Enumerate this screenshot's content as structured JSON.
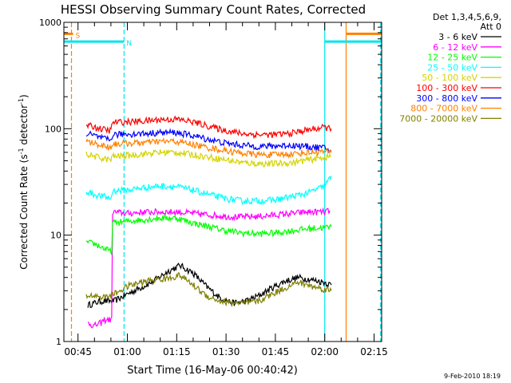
{
  "chart_data": {
    "type": "line",
    "title": "HESSI Observing Summary Count Rates, Corrected",
    "xlabel": "Start Time (16-May-06 00:40:42)",
    "ylabel_main": "Corrected Count Rate (s",
    "ylabel_exp1": "-1",
    "ylabel_mid": " detector",
    "ylabel_exp2": "-1",
    "ylabel_end": ")",
    "timestamp": "9-Feb-2010 18:19",
    "y_scale": "log",
    "ylim": [
      1,
      1000
    ],
    "xlim_minutes": [
      40.7,
      137.3
    ],
    "x_ticks": [
      {
        "minute": 45,
        "label": "00:45"
      },
      {
        "minute": 60,
        "label": "01:00"
      },
      {
        "minute": 75,
        "label": "01:15"
      },
      {
        "minute": 90,
        "label": "01:30"
      },
      {
        "minute": 105,
        "label": "01:45"
      },
      {
        "minute": 120,
        "label": "02:00"
      },
      {
        "minute": 135,
        "label": "02:15"
      }
    ],
    "y_ticks": [
      {
        "value": 1,
        "label": "1"
      },
      {
        "value": 10,
        "label": "10"
      },
      {
        "value": 100,
        "label": "100"
      },
      {
        "value": 1000,
        "label": "1000"
      }
    ],
    "legend": {
      "header1": "Det 1,3,4,5,6,9,",
      "header2": "Att 0",
      "placement": "right"
    },
    "flags": [
      {
        "label": "S",
        "color": "#ff8000",
        "start": 40.7,
        "end": 43.5,
        "restart": 126.5,
        "level": 780
      },
      {
        "label": "N",
        "color": "#00e5ee",
        "start": 40.7,
        "end": 59.0,
        "restart": 120.0,
        "level": 660
      }
    ],
    "markers": [
      {
        "minute": 43.0,
        "color": "#ff8000",
        "style": "dashed"
      },
      {
        "minute": 59.0,
        "color": "#00e5ee",
        "style": "dashed"
      },
      {
        "minute": 120.0,
        "color": "#00e5ee",
        "style": "solid"
      },
      {
        "minute": 126.5,
        "color": "#ff8000",
        "style": "solid"
      },
      {
        "minute": 137.0,
        "color": "#00e5ee",
        "style": "dashed"
      }
    ],
    "series": [
      {
        "name": "3 - 6 keV",
        "color": "#000000",
        "points": [
          [
            48,
            2.2
          ],
          [
            52,
            2.4
          ],
          [
            56,
            2.4
          ],
          [
            60,
            2.8
          ],
          [
            64,
            3.2
          ],
          [
            68,
            3.7
          ],
          [
            72,
            4.5
          ],
          [
            76,
            5.2
          ],
          [
            80,
            4.4
          ],
          [
            84,
            3.3
          ],
          [
            88,
            2.6
          ],
          [
            92,
            2.3
          ],
          [
            96,
            2.4
          ],
          [
            100,
            2.7
          ],
          [
            104,
            3.2
          ],
          [
            108,
            3.7
          ],
          [
            112,
            4.0
          ],
          [
            116,
            3.8
          ],
          [
            120,
            3.6
          ],
          [
            122,
            3.4
          ]
        ]
      },
      {
        "name": "6 - 12 keV",
        "color": "#ff00ff",
        "points": [
          [
            48,
            1.5
          ],
          [
            50,
            1.4
          ],
          [
            52,
            1.5
          ],
          [
            53,
            1.6
          ],
          [
            55.5,
            16.5
          ],
          [
            60,
            16
          ],
          [
            65,
            16.5
          ],
          [
            70,
            16.5
          ],
          [
            75,
            16.5
          ],
          [
            80,
            16
          ],
          [
            85,
            15.5
          ],
          [
            90,
            15
          ],
          [
            95,
            14.8
          ],
          [
            100,
            15
          ],
          [
            105,
            15.5
          ],
          [
            110,
            16
          ],
          [
            115,
            16.5
          ],
          [
            120,
            16.5
          ],
          [
            121.5,
            17
          ]
        ]
      },
      {
        "name": "12 - 25 keV",
        "color": "#00ff00",
        "points": [
          [
            47.5,
            8.5
          ],
          [
            50,
            8.3
          ],
          [
            53,
            7.5
          ],
          [
            55,
            7.0
          ],
          [
            55.5,
            13
          ],
          [
            60,
            13.5
          ],
          [
            65,
            14
          ],
          [
            70,
            14.5
          ],
          [
            75,
            14.5
          ],
          [
            80,
            13
          ],
          [
            85,
            12
          ],
          [
            90,
            11
          ],
          [
            95,
            10.5
          ],
          [
            100,
            10.3
          ],
          [
            105,
            10.5
          ],
          [
            110,
            11
          ],
          [
            115,
            11.5
          ],
          [
            120,
            11.8
          ],
          [
            122,
            12
          ]
        ]
      },
      {
        "name": "25 - 50 keV",
        "color": "#00ffff",
        "points": [
          [
            47.5,
            26
          ],
          [
            50,
            24
          ],
          [
            53,
            23
          ],
          [
            55,
            22
          ],
          [
            55.5,
            26
          ],
          [
            60,
            26.5
          ],
          [
            65,
            28
          ],
          [
            70,
            29
          ],
          [
            75,
            28.5
          ],
          [
            80,
            26.5
          ],
          [
            85,
            24
          ],
          [
            90,
            22
          ],
          [
            95,
            21
          ],
          [
            100,
            21
          ],
          [
            105,
            21.5
          ],
          [
            110,
            23
          ],
          [
            115,
            25
          ],
          [
            120,
            29
          ],
          [
            122,
            36
          ]
        ]
      },
      {
        "name": "50 - 100 keV",
        "color": "#d4d400",
        "points": [
          [
            47.5,
            58
          ],
          [
            50,
            55
          ],
          [
            53,
            52
          ],
          [
            55,
            51
          ],
          [
            55.5,
            55
          ],
          [
            60,
            56
          ],
          [
            65,
            58
          ],
          [
            70,
            60
          ],
          [
            75,
            60
          ],
          [
            80,
            57
          ],
          [
            85,
            54
          ],
          [
            90,
            51
          ],
          [
            95,
            48
          ],
          [
            100,
            47
          ],
          [
            105,
            47
          ],
          [
            110,
            48
          ],
          [
            115,
            51
          ],
          [
            120,
            54
          ],
          [
            122,
            55
          ]
        ]
      },
      {
        "name": "100 - 300 keV",
        "color": "#ff0000",
        "points": [
          [
            47.5,
            108
          ],
          [
            50,
            104
          ],
          [
            53,
            98
          ],
          [
            55,
            96
          ],
          [
            55.5,
            115
          ],
          [
            60,
            116
          ],
          [
            65,
            118
          ],
          [
            70,
            122
          ],
          [
            75,
            123
          ],
          [
            80,
            116
          ],
          [
            85,
            105
          ],
          [
            90,
            96
          ],
          [
            95,
            90
          ],
          [
            100,
            88
          ],
          [
            105,
            88
          ],
          [
            110,
            91
          ],
          [
            115,
            98
          ],
          [
            120,
            103
          ],
          [
            122,
            100
          ]
        ]
      },
      {
        "name": "300 - 800 keV",
        "color": "#0000ff",
        "points": [
          [
            47.5,
            90
          ],
          [
            50,
            86
          ],
          [
            53,
            80
          ],
          [
            55,
            78
          ],
          [
            55.5,
            88
          ],
          [
            60,
            89
          ],
          [
            65,
            90
          ],
          [
            70,
            92
          ],
          [
            75,
            92
          ],
          [
            80,
            86
          ],
          [
            85,
            79
          ],
          [
            90,
            73
          ],
          [
            95,
            70
          ],
          [
            100,
            68
          ],
          [
            105,
            69
          ],
          [
            110,
            70
          ],
          [
            115,
            68
          ],
          [
            120,
            66
          ],
          [
            122,
            62
          ]
        ]
      },
      {
        "name": "800 - 7000 keV",
        "color": "#ff8000",
        "points": [
          [
            47.5,
            76
          ],
          [
            50,
            73
          ],
          [
            53,
            69
          ],
          [
            55,
            67
          ],
          [
            55.5,
            72
          ],
          [
            60,
            73
          ],
          [
            65,
            74
          ],
          [
            70,
            76
          ],
          [
            75,
            76
          ],
          [
            80,
            71
          ],
          [
            85,
            66
          ],
          [
            90,
            62
          ],
          [
            95,
            59
          ],
          [
            100,
            57
          ],
          [
            105,
            57
          ],
          [
            110,
            58
          ],
          [
            115,
            60
          ],
          [
            120,
            61
          ],
          [
            122,
            60
          ]
        ]
      },
      {
        "name": "7000 - 20000 keV",
        "color": "#808000",
        "points": [
          [
            47.5,
            2.7
          ],
          [
            50,
            2.7
          ],
          [
            53,
            2.6
          ],
          [
            56,
            2.8
          ],
          [
            60,
            3.3
          ],
          [
            64,
            3.6
          ],
          [
            68,
            3.8
          ],
          [
            72,
            3.9
          ],
          [
            76,
            4.2
          ],
          [
            80,
            3.4
          ],
          [
            84,
            2.7
          ],
          [
            88,
            2.4
          ],
          [
            92,
            2.3
          ],
          [
            96,
            2.3
          ],
          [
            100,
            2.4
          ],
          [
            104,
            2.8
          ],
          [
            108,
            3.2
          ],
          [
            112,
            3.6
          ],
          [
            116,
            3.3
          ],
          [
            120,
            3.1
          ],
          [
            122,
            3.0
          ]
        ]
      }
    ]
  }
}
